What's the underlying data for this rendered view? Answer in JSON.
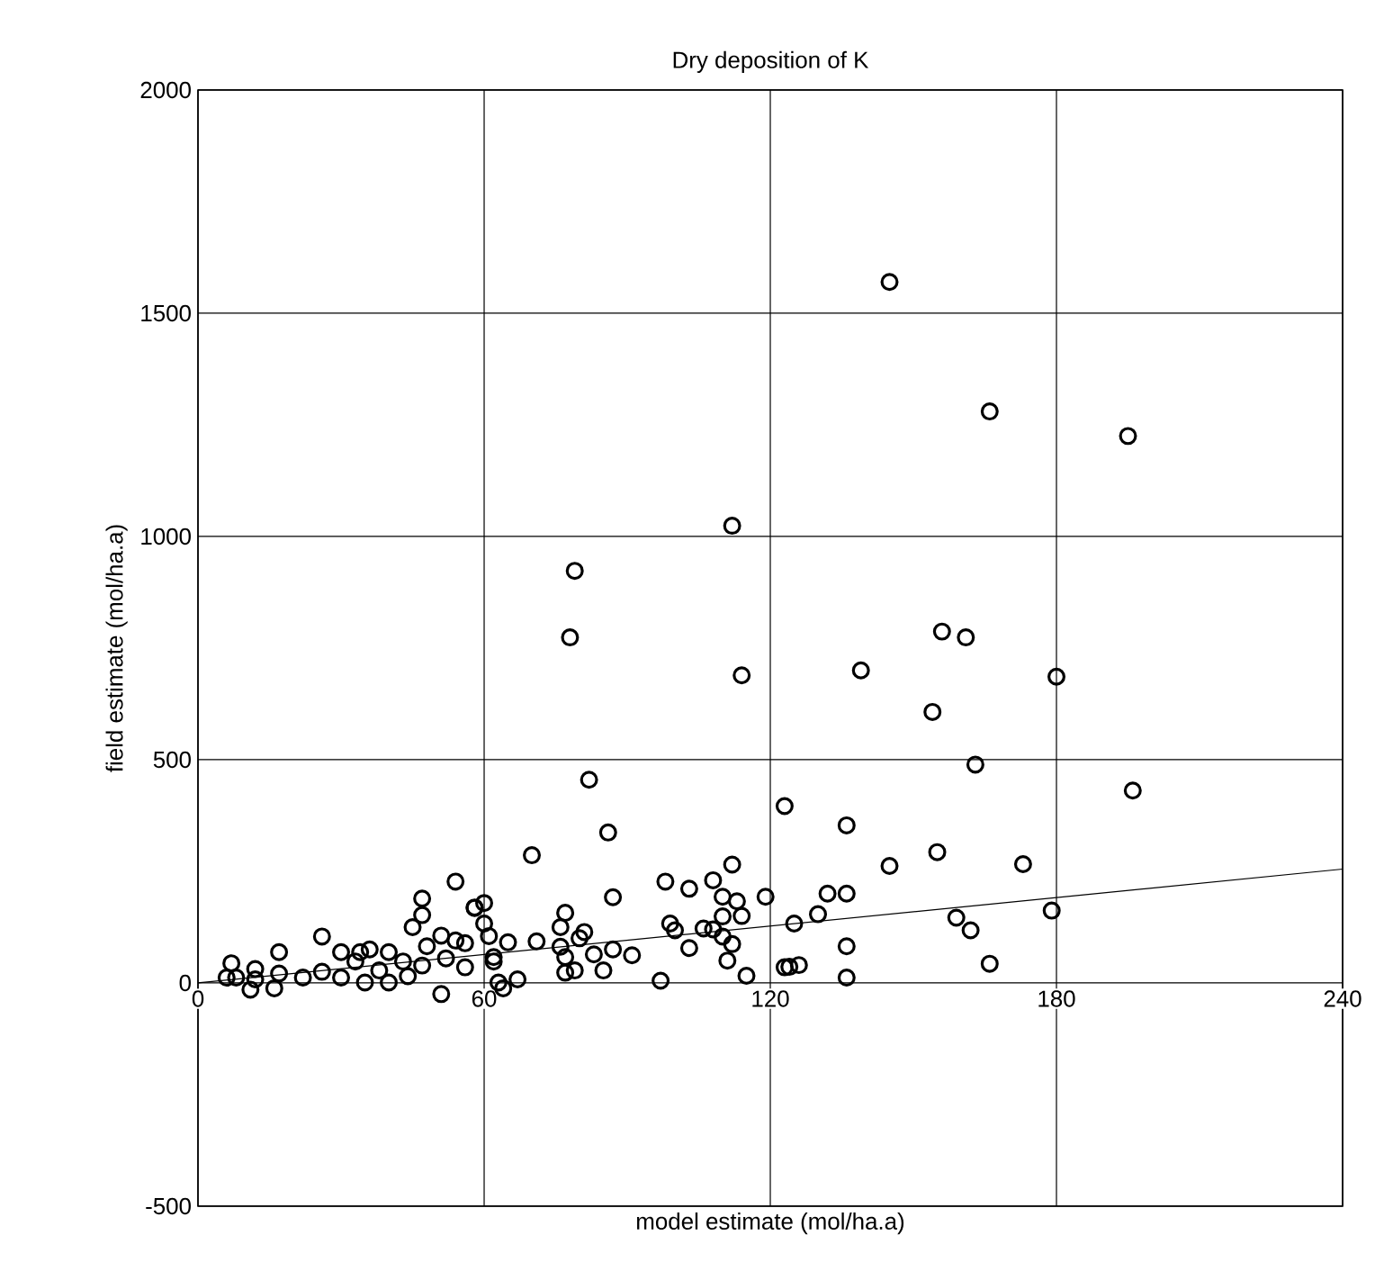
{
  "chart_data": {
    "type": "scatter",
    "title": "Dry deposition of K",
    "xlabel": "model estimate (mol/ha.a)",
    "ylabel": "field estimate (mol/ha.a)",
    "xlim": [
      0,
      240
    ],
    "ylim": [
      -500,
      2000
    ],
    "xticks": [
      0,
      60,
      120,
      180,
      240
    ],
    "yticks": [
      -500,
      0,
      500,
      1000,
      1500,
      2000
    ],
    "grid": true,
    "marker": "circle",
    "series": [
      {
        "color": "#000000",
        "x": [
          145,
          166,
          195,
          112,
          79,
          78,
          114,
          139,
          156,
          161,
          180,
          154,
          163,
          196,
          82,
          86,
          70,
          87,
          98,
          103,
          108,
          112,
          110,
          113,
          114,
          119,
          110,
          99,
          100,
          106,
          108,
          110,
          112,
          103,
          111,
          115,
          97,
          77,
          76,
          81,
          80,
          76,
          77,
          83,
          87,
          91,
          85,
          77,
          79,
          71,
          65,
          62,
          67,
          64,
          60,
          60,
          61,
          58,
          123,
          123,
          136,
          155,
          145,
          173,
          132,
          136,
          130,
          125,
          159,
          162,
          179,
          136,
          124,
          126,
          166,
          136,
          54,
          47,
          47,
          45,
          58,
          26,
          17,
          7,
          34,
          40,
          36,
          30,
          51,
          54,
          56,
          52,
          56,
          47,
          43,
          44,
          40,
          51,
          35,
          30,
          26,
          22,
          17,
          12,
          11,
          8,
          6,
          16,
          12,
          38,
          63,
          62,
          33,
          48
        ],
        "values": [
          1570,
          1280,
          1225,
          1024,
          923,
          774,
          689,
          700,
          787,
          774,
          686,
          607,
          489,
          431,
          455,
          337,
          286,
          192,
          227,
          211,
          230,
          265,
          193,
          183,
          150,
          193,
          149,
          133,
          118,
          122,
          120,
          104,
          87,
          78,
          50,
          16,
          5,
          157,
          125,
          114,
          100,
          81,
          58,
          64,
          75,
          62,
          28,
          23,
          28,
          93,
          91,
          58,
          8,
          -12,
          179,
          133,
          105,
          169,
          396,
          35,
          353,
          293,
          262,
          266,
          200,
          200,
          154,
          133,
          146,
          118,
          162,
          82,
          36,
          40,
          43,
          12,
          227,
          189,
          152,
          125,
          168,
          104,
          69,
          44,
          69,
          69,
          75,
          69,
          106,
          95,
          89,
          55,
          35,
          39,
          48,
          15,
          1,
          -25,
          1,
          12,
          25,
          12,
          21,
          8,
          -15,
          12,
          12,
          -12,
          31,
          28,
          1,
          48,
          48,
          82
        ]
      },
      {
        "type": "line",
        "color": "#000000",
        "marker": "none",
        "x": [
          0,
          240
        ],
        "values": [
          0,
          255
        ]
      }
    ]
  }
}
